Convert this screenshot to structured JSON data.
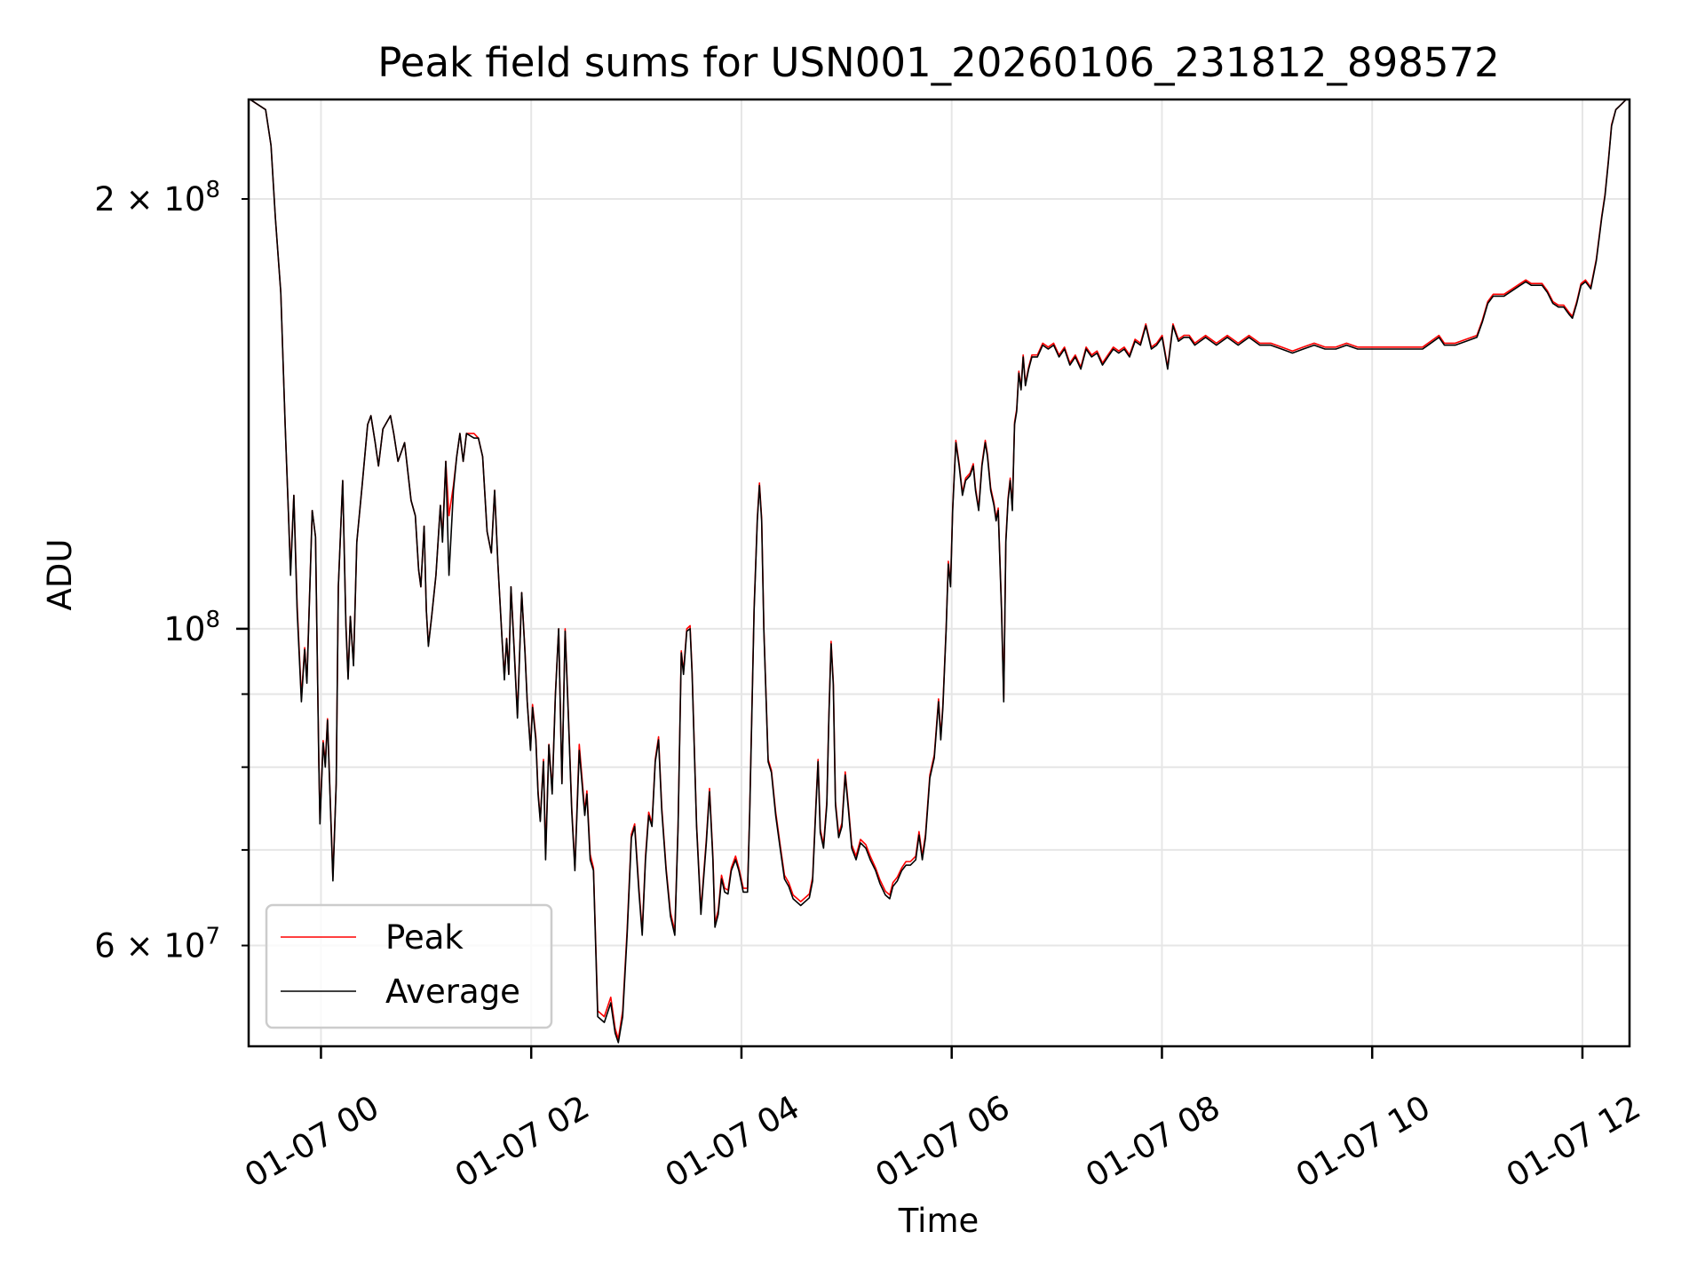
{
  "chart_data": {
    "type": "line",
    "title": "Peak field sums for USN001_20260106_231812_898572",
    "xlabel": "Time",
    "ylabel": "ADU",
    "yscale": "log",
    "xlim_hours": [
      -0.688,
      12.448
    ],
    "ylim": [
      51000000.0,
      234800000.0
    ],
    "grid": true,
    "legend_position": "lower-left",
    "x_ticks": [
      {
        "hours": 0,
        "label": "01-07 00"
      },
      {
        "hours": 2,
        "label": "01-07 02"
      },
      {
        "hours": 4,
        "label": "01-07 04"
      },
      {
        "hours": 6,
        "label": "01-07 06"
      },
      {
        "hours": 8,
        "label": "01-07 08"
      },
      {
        "hours": 10,
        "label": "01-07 10"
      },
      {
        "hours": 12,
        "label": "01-07 12"
      }
    ],
    "y_ticks": [
      {
        "value": 200000000.0,
        "mantissa": "2 × 10",
        "exp": "8",
        "major": false
      },
      {
        "value": 100000000.0,
        "mantissa": "10",
        "exp": "8",
        "major": true
      },
      {
        "value": 90000000.0,
        "mantissa": "",
        "exp": "",
        "major": false
      },
      {
        "value": 80000000.0,
        "mantissa": "",
        "exp": "",
        "major": false
      },
      {
        "value": 70000000.0,
        "mantissa": "",
        "exp": "",
        "major": false
      },
      {
        "value": 60000000.0,
        "mantissa": "6 × 10",
        "exp": "7",
        "major": false
      }
    ],
    "x_hours": [
      -0.681,
      -0.527,
      -0.475,
      -0.434,
      -0.382,
      -0.341,
      -0.31,
      -0.289,
      -0.258,
      -0.227,
      -0.186,
      -0.155,
      -0.134,
      -0.083,
      -0.052,
      -0.021,
      -0.01,
      0.021,
      0.041,
      0.062,
      0.114,
      0.145,
      0.165,
      0.207,
      0.237,
      0.258,
      0.279,
      0.31,
      0.341,
      0.392,
      0.444,
      0.475,
      0.516,
      0.547,
      0.589,
      0.661,
      0.692,
      0.733,
      0.795,
      0.857,
      0.898,
      0.929,
      0.95,
      0.981,
      1.002,
      1.022,
      1.053,
      1.094,
      1.136,
      1.156,
      1.187,
      1.218,
      1.26,
      1.291,
      1.322,
      1.353,
      1.384,
      1.456,
      1.497,
      1.538,
      1.58,
      1.621,
      1.652,
      1.683,
      1.724,
      1.745,
      1.766,
      1.786,
      1.807,
      1.838,
      1.869,
      1.91,
      1.941,
      1.962,
      1.993,
      2.013,
      2.044,
      2.065,
      2.086,
      2.117,
      2.137,
      2.168,
      2.199,
      2.23,
      2.261,
      2.292,
      2.323,
      2.354,
      2.385,
      2.416,
      2.457,
      2.509,
      2.53,
      2.561,
      2.592,
      2.633,
      2.695,
      2.757,
      2.798,
      2.829,
      2.87,
      2.912,
      2.953,
      2.984,
      3.025,
      3.056,
      3.087,
      3.118,
      3.149,
      3.18,
      3.211,
      3.242,
      3.283,
      3.325,
      3.366,
      3.397,
      3.428,
      3.449,
      3.48,
      3.511,
      3.531,
      3.573,
      3.614,
      3.666,
      3.696,
      3.728,
      3.748,
      3.779,
      3.81,
      3.841,
      3.872,
      3.903,
      3.944,
      3.975,
      4.017,
      4.058,
      4.078,
      4.12,
      4.151,
      4.171,
      4.192,
      4.213,
      4.254,
      4.285,
      4.326,
      4.368,
      4.409,
      4.45,
      4.491,
      4.564,
      4.646,
      4.677,
      4.708,
      4.729,
      4.75,
      4.781,
      4.812,
      4.832,
      4.853,
      4.874,
      4.894,
      4.925,
      4.956,
      4.987,
      5.018,
      5.049,
      5.09,
      5.132,
      5.183,
      5.225,
      5.276,
      5.317,
      5.369,
      5.41,
      5.441,
      5.483,
      5.524,
      5.565,
      5.607,
      5.658,
      5.689,
      5.72,
      5.751,
      5.792,
      5.834,
      5.875,
      5.896,
      5.916,
      5.947,
      5.968,
      5.989,
      6.009,
      6.04,
      6.071,
      6.102,
      6.133,
      6.174,
      6.205,
      6.226,
      6.257,
      6.288,
      6.319,
      6.34,
      6.371,
      6.402,
      6.422,
      6.443,
      6.474,
      6.495,
      6.515,
      6.536,
      6.557,
      6.577,
      6.598,
      6.618,
      6.639,
      6.66,
      6.68,
      6.701,
      6.732,
      6.763,
      6.815,
      6.866,
      6.918,
      6.97,
      7.021,
      7.073,
      7.124,
      7.176,
      7.228,
      7.279,
      7.331,
      7.383,
      7.434,
      7.486,
      7.537,
      7.589,
      7.641,
      7.692,
      7.744,
      7.796,
      7.847,
      7.899,
      7.95,
      8.002,
      8.054,
      8.105,
      8.157,
      8.209,
      8.26,
      8.312,
      8.415,
      8.518,
      8.622,
      8.725,
      8.828,
      8.931,
      9.035,
      9.138,
      9.241,
      9.344,
      9.448,
      9.551,
      9.654,
      9.757,
      9.861,
      9.964,
      10.067,
      10.17,
      10.274,
      10.377,
      10.48,
      10.584,
      10.635,
      10.687,
      10.79,
      10.893,
      10.996,
      11.048,
      11.1,
      11.151,
      11.254,
      11.358,
      11.409,
      11.461,
      11.513,
      11.564,
      11.616,
      11.667,
      11.719,
      11.771,
      11.822,
      11.874,
      11.905,
      11.946,
      11.987,
      12.029,
      12.08,
      12.132,
      12.184,
      12.215,
      12.246,
      12.277,
      12.318,
      12.37,
      12.421
    ],
    "series": [
      {
        "name": "Peak",
        "color": "#ff0000",
        "values": [
          235000000.0,
          231000000.0,
          218000000.0,
          194000000.0,
          172000000.0,
          139000000.0,
          121000000.0,
          110000000.0,
          124000000.0,
          104000000.0,
          89500000.0,
          97000000.0,
          92000000.0,
          121000000.0,
          116000000.0,
          81000000.0,
          73500000.0,
          83500000.0,
          80500000.0,
          86500000.0,
          67000000.0,
          78000000.0,
          107000000.0,
          127000000.0,
          101000000.0,
          92500000.0,
          102000000.0,
          94500000.0,
          115000000.0,
          126000000.0,
          139000000.0,
          141000000.0,
          135000000.0,
          130000000.0,
          138000000.0,
          141000000.0,
          137000000.0,
          131000000.0,
          135000000.0,
          123000000.0,
          120000000.0,
          110000000.0,
          107000000.0,
          118000000.0,
          103000000.0,
          97500000.0,
          102000000.0,
          109000000.0,
          122000000.0,
          116000000.0,
          131000000.0,
          120000000.0,
          126000000.0,
          132000000.0,
          137000000.0,
          131000000.0,
          137000000.0,
          137000000.0,
          136000000.0,
          132000000.0,
          117000000.0,
          113000000.0,
          125000000.0,
          111000000.0,
          98000000.0,
          92500000.0,
          98500000.0,
          93000000.0,
          107000000.0,
          97000000.0,
          87000000.0,
          106000000.0,
          96500000.0,
          89000000.0,
          82500000.0,
          88500000.0,
          84000000.0,
          77000000.0,
          73500000.0,
          81000000.0,
          69500000.0,
          83000000.0,
          77000000.0,
          90000000.0,
          100000000.0,
          78000000.0,
          100000000.0,
          87000000.0,
          75000000.0,
          68000000.0,
          83000000.0,
          74500000.0,
          77000000.0,
          69500000.0,
          68000000.0,
          54000000.0,
          53500000.0,
          55200000.0,
          52500000.0,
          51600000.0,
          54000000.0,
          61500000.0,
          71800000.0,
          73000000.0,
          65800000.0,
          61400000.0,
          69300000.0,
          74400000.0,
          73000000.0,
          81000000.0,
          84000000.0,
          75000000.0,
          68000000.0,
          63300000.0,
          61400000.0,
          73000000.0,
          96500000.0,
          93300000.0,
          100000000.0,
          100500000.0,
          93300000.0,
          73000000.0,
          63500000.0,
          71200000.0,
          77300000.0,
          69300000.0,
          62200000.0,
          63500000.0,
          67200000.0,
          65800000.0,
          65600000.0,
          68000000.0,
          69300000.0,
          68000000.0,
          65800000.0,
          65800000.0,
          74400000.0,
          103500000.0,
          119500000.0,
          126500000.0,
          119500000.0,
          100000000.0,
          81000000.0,
          79600000.0,
          74400000.0,
          70600000.0,
          67200000.0,
          66400000.0,
          65100000.0,
          64400000.0,
          65200000.0,
          67000000.0,
          75400000.0,
          81000000.0,
          72400000.0,
          70600000.0,
          75700000.0,
          87000000.0,
          98000000.0,
          91700000.0,
          75700000.0,
          71800000.0,
          73100000.0,
          79400000.0,
          75000000.0,
          70600000.0,
          69300000.0,
          71200000.0,
          70600000.0,
          69300000.0,
          68000000.0,
          66700000.0,
          65500000.0,
          65100000.0,
          66400000.0,
          67000000.0,
          68000000.0,
          68700000.0,
          68700000.0,
          69300000.0,
          72100000.0,
          69300000.0,
          71800000.0,
          79000000.0,
          81600000.0,
          89300000.0,
          84000000.0,
          88500000.0,
          100000000.0,
          111500000.0,
          107500000.0,
          121500000.0,
          135500000.0,
          130500000.0,
          124500000.0,
          127500000.0,
          128500000.0,
          130500000.0,
          125500000.0,
          121500000.0,
          130500000.0,
          135500000.0,
          132500000.0,
          125500000.0,
          122500000.0,
          119500000.0,
          121500000.0,
          103500000.0,
          89300000.0,
          115500000.0,
          123500000.0,
          127500000.0,
          121500000.0,
          139500000.0,
          142500000.0,
          151500000.0,
          147500000.0,
          155500000.0,
          148500000.0,
          152500000.0,
          155500000.0,
          155500000.0,
          158500000.0,
          157500000.0,
          158500000.0,
          155500000.0,
          157500000.0,
          153500000.0,
          155500000.0,
          152500000.0,
          157500000.0,
          155500000.0,
          156500000.0,
          153500000.0,
          155500000.0,
          157500000.0,
          156500000.0,
          157500000.0,
          155500000.0,
          159500000.0,
          158500000.0,
          163500000.0,
          157500000.0,
          158500000.0,
          160500000.0,
          152500000.0,
          163500000.0,
          159500000.0,
          160500000.0,
          160500000.0,
          158500000.0,
          160500000.0,
          158500000.0,
          160500000.0,
          158500000.0,
          160500000.0,
          158500000.0,
          158500000.0,
          157500000.0,
          156500000.0,
          157500000.0,
          158500000.0,
          157500000.0,
          157500000.0,
          158500000.0,
          157500000.0,
          157500000.0,
          157500000.0,
          157500000.0,
          157500000.0,
          157500000.0,
          157500000.0,
          159500000.0,
          160500000.0,
          158500000.0,
          158500000.0,
          159500000.0,
          160500000.0,
          164500000.0,
          169500000.0,
          171500000.0,
          171500000.0,
          173500000.0,
          174500000.0,
          175500000.0,
          174500000.0,
          174500000.0,
          174500000.0,
          172500000.0,
          169500000.0,
          168500000.0,
          168500000.0,
          166500000.0,
          165500000.0,
          169500000.0,
          174500000.0,
          175500000.0,
          173500000.0,
          181500000.0,
          194500000.0,
          201500000.0,
          212500000.0,
          225500000.0,
          231000000.0,
          233000000.0,
          235000000.0
        ]
      },
      {
        "name": "Average",
        "color": "#000000",
        "values": [
          235000000.0,
          231000000.0,
          218000000.0,
          194000000.0,
          172000000.0,
          139000000.0,
          121000000.0,
          109000000.0,
          124000000.0,
          103000000.0,
          88900000.0,
          96700000.0,
          91600000.0,
          121000000.0,
          116000000.0,
          80700000.0,
          73000000.0,
          83200000.0,
          80000000.0,
          86300000.0,
          66600000.0,
          77900000.0,
          107000000.0,
          127000000.0,
          100500000.0,
          92200000.0,
          102000000.0,
          94200000.0,
          115000000.0,
          126000000.0,
          139000000.0,
          141000000.0,
          135000000.0,
          130000000.0,
          138000000.0,
          141000000.0,
          137000000.0,
          131000000.0,
          135000000.0,
          123000000.0,
          120000000.0,
          110000000.0,
          107000000.0,
          118000000.0,
          103000000.0,
          97200000.0,
          102000000.0,
          109000000.0,
          122000000.0,
          115000000.0,
          131000000.0,
          109000000.0,
          125000000.0,
          132000000.0,
          137000000.0,
          131000000.0,
          137000000.0,
          136000000.0,
          136000000.0,
          132000000.0,
          117000000.0,
          113000000.0,
          125000000.0,
          111000000.0,
          97900000.0,
          92100000.0,
          98400000.0,
          92900000.0,
          107000000.0,
          96600000.0,
          86600000.0,
          106000000.0,
          96200000.0,
          88900000.0,
          82200000.0,
          88100000.0,
          83600000.0,
          76600000.0,
          73300000.0,
          80700000.0,
          68900000.0,
          82900000.0,
          76600000.0,
          89700000.0,
          100000000.0,
          77900000.0,
          99600000.0,
          86600000.0,
          74600000.0,
          67700000.0,
          82200000.0,
          74000000.0,
          76600000.0,
          68900000.0,
          67700000.0,
          53500000.0,
          53000000.0,
          54700000.0,
          52100000.0,
          51300000.0,
          53500000.0,
          61000000.0,
          71400000.0,
          72700000.0,
          65400000.0,
          61000000.0,
          68900000.0,
          74000000.0,
          72700000.0,
          80700000.0,
          83600000.0,
          74600000.0,
          67700000.0,
          62900000.0,
          61000000.0,
          72700000.0,
          96200000.0,
          92900000.0,
          99600000.0,
          100000000.0,
          92900000.0,
          72700000.0,
          63100000.0,
          70800000.0,
          76900000.0,
          68900000.0,
          61800000.0,
          63100000.0,
          66800000.0,
          65400000.0,
          65200000.0,
          67700000.0,
          68900000.0,
          67700000.0,
          65400000.0,
          65400000.0,
          74000000.0,
          103000000.0,
          119000000.0,
          126000000.0,
          119000000.0,
          99600000.0,
          80700000.0,
          79300000.0,
          74000000.0,
          70200000.0,
          66800000.0,
          66000000.0,
          64700000.0,
          64000000.0,
          64800000.0,
          66600000.0,
          75000000.0,
          80700000.0,
          72000000.0,
          70200000.0,
          75300000.0,
          86600000.0,
          97600000.0,
          91300000.0,
          75300000.0,
          71400000.0,
          72700000.0,
          79000000.0,
          74600000.0,
          70200000.0,
          68900000.0,
          70800000.0,
          70200000.0,
          68900000.0,
          67700000.0,
          66300000.0,
          65100000.0,
          64700000.0,
          66000000.0,
          66600000.0,
          67700000.0,
          68300000.0,
          68300000.0,
          68900000.0,
          71700000.0,
          68900000.0,
          71400000.0,
          78600000.0,
          81200000.0,
          88900000.0,
          83600000.0,
          88100000.0,
          99600000.0,
          111000000.0,
          107000000.0,
          121000000.0,
          135000000.0,
          130000000.0,
          124000000.0,
          127000000.0,
          128000000.0,
          130000000.0,
          125000000.0,
          121000000.0,
          130000000.0,
          135000000.0,
          132000000.0,
          125000000.0,
          122000000.0,
          119000000.0,
          121000000.0,
          103000000.0,
          88900000.0,
          115000000.0,
          123000000.0,
          127000000.0,
          121000000.0,
          139000000.0,
          142000000.0,
          151000000.0,
          147000000.0,
          155000000.0,
          148000000.0,
          152000000.0,
          155000000.0,
          155000000.0,
          158000000.0,
          157000000.0,
          158000000.0,
          155000000.0,
          157000000.0,
          153000000.0,
          155000000.0,
          152000000.0,
          157000000.0,
          155000000.0,
          156000000.0,
          153000000.0,
          155000000.0,
          157000000.0,
          156000000.0,
          157000000.0,
          155000000.0,
          159000000.0,
          158000000.0,
          163000000.0,
          157000000.0,
          158000000.0,
          160000000.0,
          152000000.0,
          163000000.0,
          159000000.0,
          160000000.0,
          160000000.0,
          158000000.0,
          160000000.0,
          158000000.0,
          160000000.0,
          158000000.0,
          160000000.0,
          158000000.0,
          158000000.0,
          157000000.0,
          156000000.0,
          157000000.0,
          158000000.0,
          157000000.0,
          157000000.0,
          158000000.0,
          157000000.0,
          157000000.0,
          157000000.0,
          157000000.0,
          157000000.0,
          157000000.0,
          157000000.0,
          159000000.0,
          160000000.0,
          158000000.0,
          158000000.0,
          159000000.0,
          160000000.0,
          164000000.0,
          169000000.0,
          171000000.0,
          171000000.0,
          173000000.0,
          174000000.0,
          175000000.0,
          174000000.0,
          174000000.0,
          174000000.0,
          172000000.0,
          169000000.0,
          168000000.0,
          168000000.0,
          166000000.0,
          165000000.0,
          169000000.0,
          174000000.0,
          175000000.0,
          173000000.0,
          181000000.0,
          194000000.0,
          201000000.0,
          212000000.0,
          225000000.0,
          231000000.0,
          233000000.0,
          235000000.0
        ]
      }
    ]
  }
}
